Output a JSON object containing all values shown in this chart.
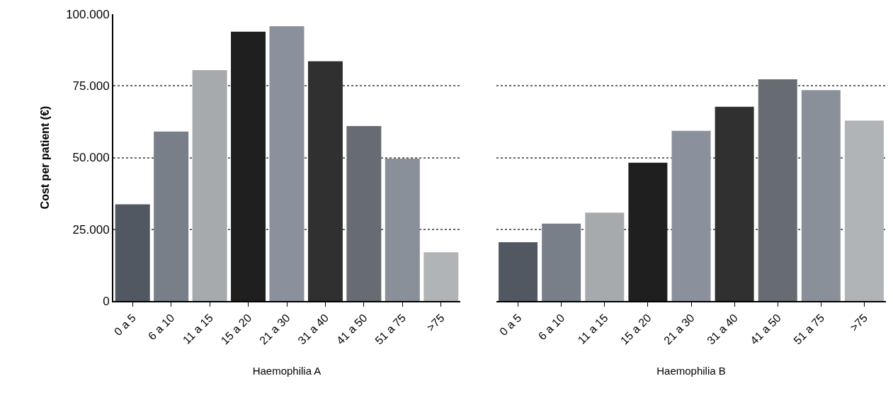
{
  "chart_data": [
    {
      "type": "bar",
      "ylabel": "Cost per patient (€)",
      "xlabel": "Haemophilia A",
      "categories": [
        "0 a 5",
        "6 a 10",
        "11 a 15",
        "15 a 20",
        "21 a 30",
        "31 a 40",
        "41 a 50",
        "51 a 75",
        ">75"
      ],
      "values": [
        33700,
        59100,
        80500,
        93900,
        95800,
        83600,
        61000,
        49600,
        17000
      ],
      "colors": [
        "#525861",
        "#787f89",
        "#a7aaad",
        "#1f1f1f",
        "#8b919c",
        "#303030",
        "#676c73",
        "#8a9099",
        "#b1b4b6"
      ],
      "ylim": [
        0,
        100000
      ],
      "yticks": [
        {
          "value": 0,
          "label": "0"
        },
        {
          "value": 25000,
          "label": "25.000"
        },
        {
          "value": 50000,
          "label": "50.000"
        },
        {
          "value": 75000,
          "label": "75.000"
        },
        {
          "value": 100000,
          "label": "100.000"
        }
      ],
      "grid": "y"
    },
    {
      "type": "bar",
      "xlabel": "Haemophilia B",
      "categories": [
        "0 a 5",
        "6 a 10",
        "11 a 15",
        "15 a 20",
        "21 a 30",
        "31 a 40",
        "41 a 50",
        "51 a 75",
        ">75"
      ],
      "values": [
        20500,
        27000,
        30800,
        48200,
        59300,
        67700,
        77300,
        73500,
        62900
      ],
      "colors": [
        "#525861",
        "#787f89",
        "#a7aaad",
        "#1f1f1f",
        "#8b919c",
        "#303030",
        "#676c73",
        "#8a9099",
        "#b1b4b6"
      ],
      "ylim": [
        0,
        100000
      ],
      "yticks": [
        {
          "value": 0,
          "label": null
        },
        {
          "value": 25000,
          "label": null
        },
        {
          "value": 50000,
          "label": null
        },
        {
          "value": 75000,
          "label": null
        },
        {
          "value": 100000,
          "label": null
        }
      ],
      "grid": "y",
      "tick_labels": "x"
    }
  ]
}
